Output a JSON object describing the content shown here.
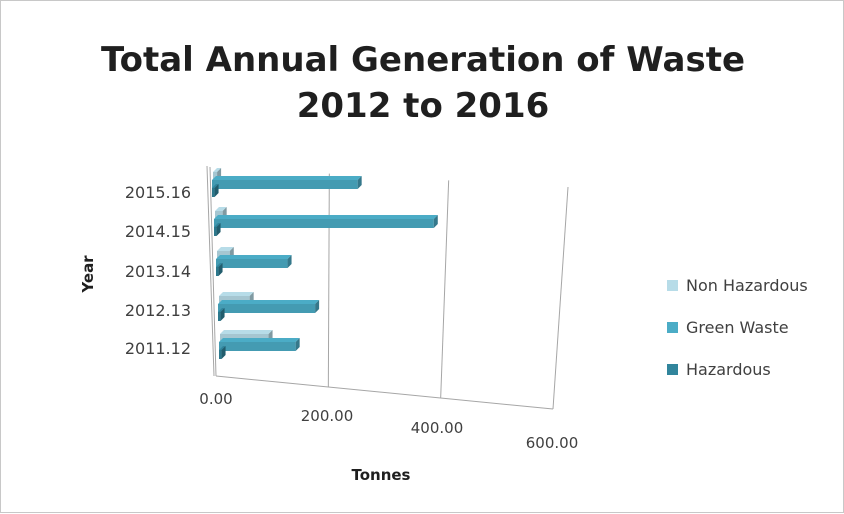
{
  "chart_data": {
    "type": "bar",
    "orientation": "horizontal",
    "title": "Total Annual Generation of Waste 2012 to 2016",
    "title_lines": [
      "Total Annual Generation of Waste",
      "2012 to 2016"
    ],
    "xlabel": "Tonnes",
    "ylabel": "Year",
    "categories": [
      "2011.12",
      "2012.13",
      "2013.14",
      "2014.15",
      "2015.16"
    ],
    "series": [
      {
        "name": "Non Hazardous",
        "color": "#b7dce8",
        "values": [
          95,
          60,
          25,
          15,
          8
        ]
      },
      {
        "name": "Green Waste",
        "color": "#4bacc6",
        "values": [
          150,
          190,
          140,
          430,
          285
        ]
      },
      {
        "name": "Hazardous",
        "color": "#31859c",
        "values": [
          5,
          5,
          5,
          5,
          5
        ]
      }
    ],
    "xlim": [
      0,
      600
    ],
    "xticks": [
      "0.00",
      "200.00",
      "400.00",
      "600.00"
    ],
    "grid": true,
    "legend_position": "right"
  }
}
